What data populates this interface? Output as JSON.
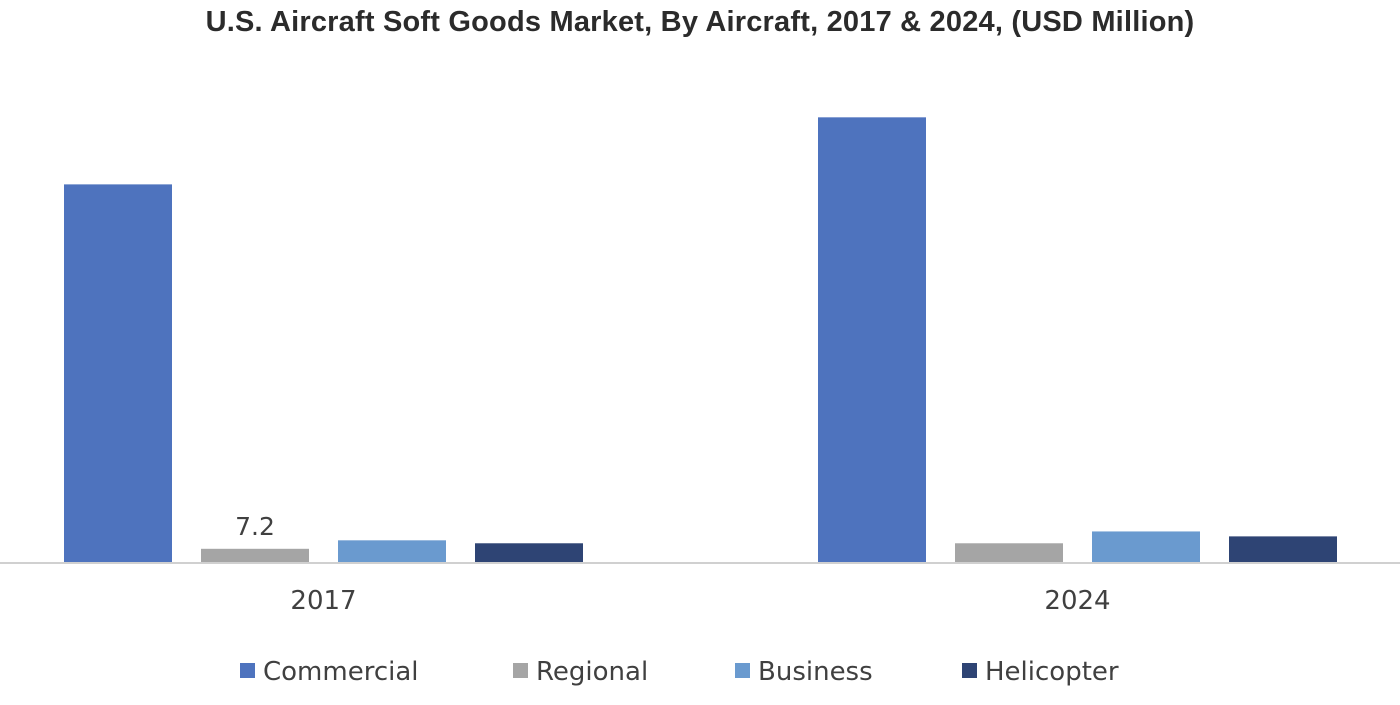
{
  "chart_data": {
    "type": "bar",
    "title": "U.S. Aircraft Soft Goods Market, By Aircraft, 2017 & 2024, (USD Million)",
    "xlabel": "",
    "ylabel": "",
    "categories": [
      "2017",
      "2024"
    ],
    "series": [
      {
        "name": "Commercial",
        "color": "#4E73BE",
        "values": [
          192.0,
          226.0
        ]
      },
      {
        "name": "Regional",
        "color": "#A5A5A5",
        "values": [
          7.2,
          10.0
        ]
      },
      {
        "name": "Business",
        "color": "#6A9ACF",
        "values": [
          11.5,
          16.0
        ]
      },
      {
        "name": "Helicopter",
        "color": "#2E4474",
        "values": [
          10.0,
          13.5
        ]
      }
    ],
    "data_labels": [
      {
        "series": "Regional",
        "category": "2017",
        "text": "7.2"
      }
    ],
    "ylim": [
      0,
      250
    ],
    "grid": false,
    "legend_position": "bottom"
  }
}
